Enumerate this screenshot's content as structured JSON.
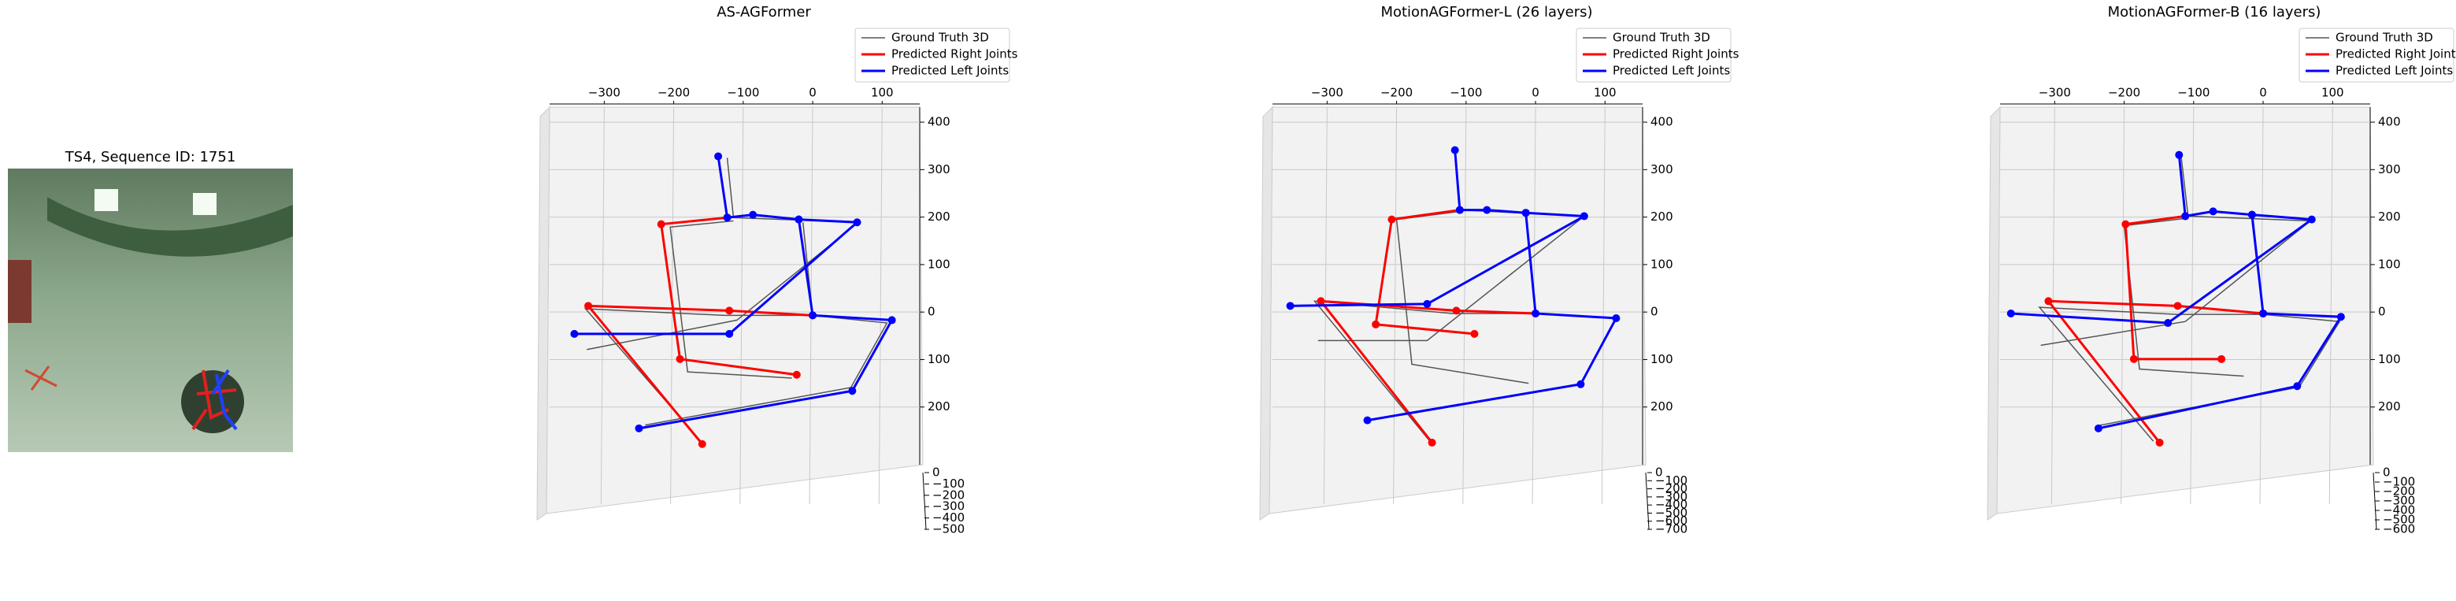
{
  "image_panel": {
    "title": "TS4, Sequence ID: 1751"
  },
  "chart_data": [
    {
      "type": "line",
      "title": "AS-AGFormer",
      "xlim": [
        -365,
        145
      ],
      "ylim": [
        -305,
        425
      ],
      "zlim": [
        -500,
        0
      ],
      "xticks": [
        {
          "value": -300,
          "label": "−300"
        },
        {
          "value": -200,
          "label": "−200"
        },
        {
          "value": -100,
          "label": "−100"
        },
        0,
        100
      ],
      "yticks": [
        400,
        300,
        200,
        100,
        0,
        {
          "value": -100,
          "label": "100"
        },
        {
          "value": -200,
          "label": "200"
        }
      ],
      "zticks": [
        0,
        {
          "value": -100,
          "label": "−100"
        },
        {
          "value": -200,
          "label": "−200"
        },
        {
          "value": -300,
          "label": "−300"
        },
        {
          "value": -400,
          "label": "−400"
        },
        {
          "value": -500,
          "label": "−500"
        }
      ],
      "series": [
        {
          "name": "Ground Truth 3D",
          "color": "#555555",
          "markers": false,
          "x": [
            -123,
            -114,
            66,
            -109,
            -325,
            null,
            -114,
            -205,
            -180,
            -30,
            null,
            -14,
            0,
            107,
            55,
            -241,
            null,
            0,
            -127,
            -327,
            -161
          ],
          "values": [
            325,
            199,
            189,
            -17,
            -79,
            null,
            192,
            179,
            -126,
            -139,
            null,
            189,
            -7,
            -23,
            -159,
            -238,
            null,
            -7,
            -7,
            7,
            -272
          ]
        },
        {
          "name": "Predicted Right Joints",
          "color": "#ff0000",
          "markers": true,
          "x": [
            -123,
            -218,
            -191,
            -23,
            null,
            0,
            -120,
            -323,
            -159
          ],
          "values": [
            199,
            185,
            -99,
            -132,
            null,
            -7,
            3,
            13,
            -278
          ]
        },
        {
          "name": "Predicted Left Joints",
          "color": "#0000ff",
          "markers": true,
          "x": [
            -136,
            -123,
            -86,
            -20,
            64,
            -120,
            -343,
            null,
            -20,
            0,
            114,
            57,
            -250
          ],
          "values": [
            328,
            199,
            205,
            195,
            189,
            -46,
            -46,
            null,
            195,
            -7,
            -17,
            -166,
            -245
          ]
        }
      ]
    },
    {
      "type": "line",
      "title": "MotionAGFormer-L (26 layers)",
      "xlim": [
        -365,
        145
      ],
      "ylim": [
        -305,
        425
      ],
      "zlim": [
        -700,
        0
      ],
      "xticks": [
        {
          "value": -300,
          "label": "−300"
        },
        {
          "value": -200,
          "label": "−200"
        },
        {
          "value": -100,
          "label": "−100"
        },
        0,
        100
      ],
      "yticks": [
        400,
        300,
        200,
        100,
        0,
        {
          "value": -100,
          "label": "100"
        },
        {
          "value": -200,
          "label": "200"
        }
      ],
      "zticks": [
        0,
        {
          "value": -100,
          "label": "−100"
        },
        {
          "value": -200,
          "label": "−200"
        },
        {
          "value": -300,
          "label": "−300"
        },
        {
          "value": -400,
          "label": "−400"
        },
        {
          "value": -500,
          "label": "−500"
        },
        {
          "value": -600,
          "label": "−600"
        },
        {
          "value": -700,
          "label": "−700"
        }
      ],
      "series": [
        {
          "name": "Ground Truth 3D",
          "color": "#555555",
          "markers": false,
          "x": [
            -116,
            -109,
            70,
            -156,
            -313,
            null,
            -109,
            -200,
            -178,
            -10,
            null,
            -14,
            0,
            116,
            65,
            -242,
            null,
            0,
            -120,
            -318,
            -152
          ],
          "values": [
            341,
            215,
            202,
            -60,
            -60,
            null,
            212,
            195,
            -110,
            -150,
            null,
            202,
            -3,
            -13,
            -152,
            -228,
            null,
            -3,
            -3,
            23,
            -272
          ]
        },
        {
          "name": "Predicted Right Joints",
          "color": "#ff0000",
          "markers": true,
          "x": [
            -109,
            -207,
            -230,
            -88,
            null,
            0,
            -114,
            -309,
            -149
          ],
          "values": [
            215,
            195,
            -26,
            -46,
            null,
            -3,
            3,
            23,
            -275
          ]
        },
        {
          "name": "Predicted Left Joints",
          "color": "#0000ff",
          "markers": true,
          "x": [
            -116,
            -109,
            -70,
            -14,
            70,
            -156,
            -353,
            null,
            -14,
            0,
            116,
            65,
            -242
          ],
          "values": [
            341,
            215,
            215,
            209,
            202,
            17,
            13,
            null,
            209,
            -3,
            -13,
            -152,
            -228
          ]
        }
      ]
    },
    {
      "type": "line",
      "title": "MotionAGFormer-B (16 layers)",
      "xlim": [
        -365,
        145
      ],
      "ylim": [
        -305,
        425
      ],
      "zlim": [
        -600,
        0
      ],
      "xticks": [
        {
          "value": -300,
          "label": "−300"
        },
        {
          "value": -200,
          "label": "−200"
        },
        {
          "value": -100,
          "label": "−100"
        },
        0,
        100
      ],
      "yticks": [
        400,
        300,
        200,
        100,
        0,
        {
          "value": -100,
          "label": "100"
        },
        {
          "value": -200,
          "label": "200"
        }
      ],
      "zticks": [
        0,
        {
          "value": -100,
          "label": "−100"
        },
        {
          "value": -200,
          "label": "−200"
        },
        {
          "value": -300,
          "label": "−300"
        },
        {
          "value": -400,
          "label": "−400"
        },
        {
          "value": -500,
          "label": "−500"
        },
        {
          "value": -600,
          "label": "−600"
        }
      ],
      "series": [
        {
          "name": "Ground Truth 3D",
          "color": "#555555",
          "markers": false,
          "x": [
            -118,
            -108,
            68,
            -112,
            -320,
            null,
            -108,
            -200,
            -178,
            -28,
            null,
            -16,
            0,
            110,
            52,
            -240,
            null,
            0,
            -125,
            -322,
            -158
          ],
          "values": [
            328,
            202,
            192,
            -20,
            -70,
            null,
            198,
            182,
            -120,
            -135,
            null,
            192,
            -5,
            -20,
            -158,
            -240,
            null,
            -5,
            -5,
            10,
            -272
          ]
        },
        {
          "name": "Predicted Right Joints",
          "color": "#ff0000",
          "markers": true,
          "x": [
            -112,
            -198,
            -186,
            -60,
            null,
            0,
            -123,
            -309,
            -149
          ],
          "values": [
            202,
            185,
            -99,
            -99,
            null,
            -3,
            13,
            23,
            -275
          ]
        },
        {
          "name": "Predicted Left Joints",
          "color": "#0000ff",
          "markers": true,
          "x": [
            -121,
            -112,
            -72,
            -16,
            70,
            -137,
            -363,
            null,
            -16,
            0,
            112,
            49,
            -237
          ],
          "values": [
            331,
            202,
            212,
            205,
            195,
            -23,
            -3,
            null,
            205,
            -3,
            -10,
            -156,
            -245
          ]
        }
      ]
    }
  ]
}
